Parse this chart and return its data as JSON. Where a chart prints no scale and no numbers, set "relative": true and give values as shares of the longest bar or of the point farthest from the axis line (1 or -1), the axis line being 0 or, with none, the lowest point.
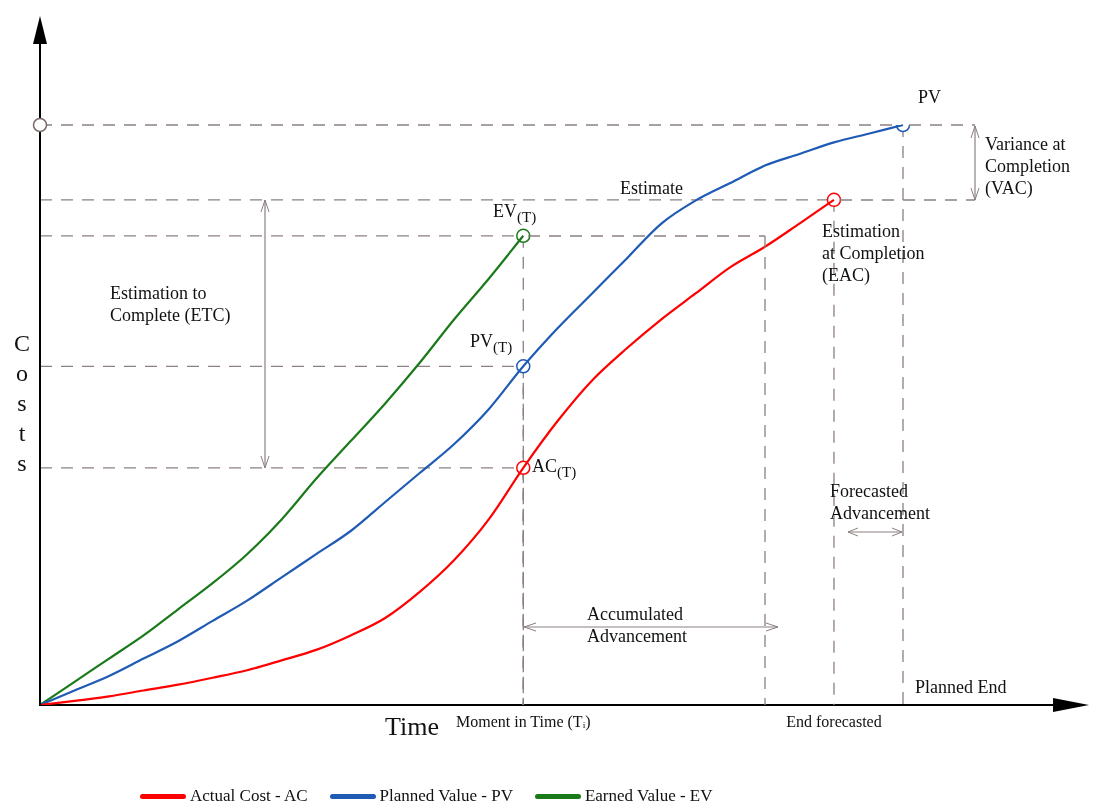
{
  "chart_data": {
    "type": "line",
    "relative": true,
    "xlabel": "Time",
    "ylabel": "Costs",
    "legend": "bottom",
    "grid": "x",
    "line_style": "solid",
    "categories": [
      null,
      null,
      null,
      null,
      null,
      null,
      null,
      null,
      null,
      null,
      null,
      null,
      null,
      null,
      "Moment in Time (Tᵢ)",
      null,
      null,
      null,
      null,
      null,
      null,
      null,
      null,
      "End forecasted",
      null,
      null
    ],
    "series": [
      {
        "name": "Actual Cost - AC",
        "color": "#ff0000",
        "marker": "none",
        "values": [
          0,
          0.007,
          0.015,
          0.025,
          0.035,
          0.047,
          0.06,
          0.077,
          0.095,
          0.12,
          0.15,
          0.195,
          0.25,
          0.32,
          0.409,
          0.49,
          0.56,
          0.615,
          0.665,
          0.71,
          0.755,
          0.79,
          0.83,
          0.871,
          null,
          null
        ]
      },
      {
        "name": "Planned Value - PV",
        "color": "#1f5bb5",
        "marker": "none",
        "values": [
          0,
          0.025,
          0.05,
          0.08,
          0.11,
          0.145,
          0.18,
          0.22,
          0.26,
          0.3,
          0.35,
          0.4,
          0.45,
          0.51,
          0.584,
          0.65,
          0.71,
          0.77,
          0.83,
          0.87,
          0.9,
          0.93,
          0.95,
          0.97,
          0.985,
          1
        ]
      },
      {
        "name": "Earned Value - EV",
        "color": "#1a7a1a",
        "marker": "none",
        "values": [
          0,
          0.04,
          0.08,
          0.12,
          0.165,
          0.21,
          0.26,
          0.32,
          0.39,
          0.455,
          0.52,
          0.59,
          0.665,
          0.735,
          0.809,
          null,
          null,
          null,
          null,
          null,
          null,
          null,
          null,
          null,
          null,
          null
        ]
      },
      {
        "type": "scatter",
        "color": "#ff0000",
        "marker": "circle",
        "values": [
          null,
          null,
          null,
          null,
          null,
          null,
          null,
          null,
          null,
          null,
          null,
          null,
          null,
          null,
          0.409,
          null,
          null,
          null,
          null,
          null,
          null,
          null,
          null,
          0.871,
          null,
          null
        ]
      },
      {
        "type": "scatter",
        "color": "#1f5bb5",
        "marker": "circle",
        "values": [
          null,
          null,
          null,
          null,
          null,
          null,
          null,
          null,
          null,
          null,
          null,
          null,
          null,
          null,
          0.584,
          null,
          null,
          null,
          null,
          null,
          null,
          null,
          null,
          null,
          null,
          1
        ]
      },
      {
        "type": "scatter",
        "color": "#1a7a1a",
        "marker": "circle",
        "values": [
          null,
          null,
          null,
          null,
          null,
          null,
          null,
          null,
          null,
          null,
          null,
          null,
          null,
          null,
          0.809,
          null,
          null,
          null,
          null,
          null,
          null,
          null,
          null,
          null,
          null,
          null
        ]
      }
    ],
    "annotations": [
      "PV",
      "Variance at\nCompletion\n(VAC)",
      "Estimate",
      "EV$_{(T)}$",
      "Estimation\nat Completion\n(EAC)",
      "Estimation to\nComplete (ETC)",
      "PV$_{(T)}$",
      "AC$_{(T)}$",
      "Forecasted\nAdvancement",
      "Accumulated\nAdvancement",
      "Planned End"
    ]
  }
}
